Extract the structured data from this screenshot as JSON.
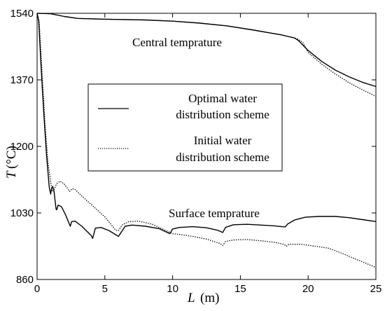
{
  "chart_data": {
    "type": "line",
    "xlabel": "L",
    "xunit": "(m)",
    "ylabel": "T",
    "yunit": "(°C)",
    "xlim": [
      0,
      25
    ],
    "ylim": [
      860,
      1540
    ],
    "xticks": [
      "0",
      "5",
      "10",
      "15",
      "20",
      "25"
    ],
    "yticks": [
      "860",
      "1030",
      "1200",
      "1370",
      "1540"
    ],
    "grid": false,
    "legend_position": "center-left",
    "annotations": {
      "central": "Central temprature",
      "surface": "Surface temprature"
    },
    "series": [
      {
        "name": "Optimal water distribution scheme",
        "legend_line1": "Optimal water",
        "legend_line2": "distribution scheme",
        "style": "solid",
        "color": "#000000",
        "curves": [
          [
            [
              0,
              1540
            ],
            [
              1,
              1539
            ],
            [
              2,
              1532
            ],
            [
              3,
              1527
            ],
            [
              5,
              1525
            ],
            [
              8,
              1523
            ],
            [
              10,
              1520
            ],
            [
              12,
              1515
            ],
            [
              14,
              1508
            ],
            [
              16,
              1497
            ],
            [
              17,
              1491
            ],
            [
              18,
              1485
            ],
            [
              18.5,
              1481
            ],
            [
              19,
              1477
            ],
            [
              19.3,
              1470
            ],
            [
              20,
              1445
            ],
            [
              21,
              1417
            ],
            [
              22,
              1395
            ],
            [
              23,
              1378
            ],
            [
              24,
              1364
            ],
            [
              25,
              1353
            ]
          ],
          [
            [
              0,
              1540
            ],
            [
              0.12,
              1520
            ],
            [
              0.3,
              1400
            ],
            [
              0.5,
              1280
            ],
            [
              0.7,
              1175
            ],
            [
              0.9,
              1095
            ],
            [
              1.0,
              1078
            ],
            [
              1.05,
              1090
            ],
            [
              1.15,
              1098
            ],
            [
              1.25,
              1085
            ],
            [
              1.4,
              1040
            ],
            [
              1.45,
              1038
            ],
            [
              1.55,
              1050
            ],
            [
              1.8,
              1046
            ],
            [
              2.1,
              1025
            ],
            [
              2.45,
              996
            ],
            [
              2.55,
              1008
            ],
            [
              2.8,
              1009
            ],
            [
              3.3,
              996
            ],
            [
              4.0,
              972
            ],
            [
              4.1,
              965
            ],
            [
              4.3,
              991
            ],
            [
              4.7,
              993
            ],
            [
              5.3,
              985
            ],
            [
              6.0,
              970
            ],
            [
              6.1,
              975
            ],
            [
              6.5,
              996
            ],
            [
              7,
              999
            ],
            [
              8,
              996
            ],
            [
              9,
              990
            ],
            [
              9.8,
              977
            ],
            [
              10.0,
              989
            ],
            [
              10.5,
              993
            ],
            [
              11.5,
              995
            ],
            [
              12.5,
              992
            ],
            [
              13.3,
              986
            ],
            [
              13.7,
              980
            ],
            [
              13.9,
              993
            ],
            [
              14.5,
              1000
            ],
            [
              15.5,
              1001
            ],
            [
              16.5,
              999
            ],
            [
              17.5,
              997
            ],
            [
              18.3,
              994
            ],
            [
              18.5,
              1002
            ],
            [
              19.0,
              1012
            ],
            [
              19.8,
              1019
            ],
            [
              20.8,
              1021
            ],
            [
              22,
              1021
            ],
            [
              23,
              1018
            ],
            [
              24,
              1013
            ],
            [
              25,
              1008
            ]
          ]
        ]
      },
      {
        "name": "Initial water distribution scheme",
        "legend_line1": "Initial water",
        "legend_line2": "distribution scheme",
        "style": "dotted",
        "color": "#000000",
        "curves": [
          [
            [
              0,
              1540
            ],
            [
              1,
              1539
            ],
            [
              2,
              1532
            ],
            [
              3,
              1527
            ],
            [
              5,
              1525
            ],
            [
              8,
              1523
            ],
            [
              10,
              1520
            ],
            [
              12,
              1515
            ],
            [
              14,
              1508
            ],
            [
              16,
              1497
            ],
            [
              17,
              1491
            ],
            [
              18,
              1485
            ],
            [
              18.5,
              1481
            ],
            [
              19,
              1477
            ],
            [
              19.3,
              1473
            ],
            [
              19.6,
              1466
            ],
            [
              20,
              1440
            ],
            [
              21,
              1410
            ],
            [
              22,
              1385
            ],
            [
              23,
              1363
            ],
            [
              24,
              1345
            ],
            [
              25,
              1328
            ]
          ],
          [
            [
              0,
              1540
            ],
            [
              0.15,
              1520
            ],
            [
              0.4,
              1370
            ],
            [
              0.6,
              1250
            ],
            [
              0.8,
              1160
            ],
            [
              1.0,
              1110
            ],
            [
              1.1,
              1085
            ],
            [
              1.25,
              1090
            ],
            [
              1.45,
              1105
            ],
            [
              1.7,
              1111
            ],
            [
              2.0,
              1104
            ],
            [
              2.4,
              1085
            ],
            [
              2.6,
              1092
            ],
            [
              2.8,
              1090
            ],
            [
              3.4,
              1070
            ],
            [
              4.2,
              1045
            ],
            [
              5.0,
              1020
            ],
            [
              5.8,
              986
            ],
            [
              6.0,
              985
            ],
            [
              6.3,
              1000
            ],
            [
              6.8,
              1008
            ],
            [
              7.5,
              1009
            ],
            [
              8.5,
              1001
            ],
            [
              9.5,
              985
            ],
            [
              10.0,
              977
            ],
            [
              10.5,
              975
            ],
            [
              11.5,
              970
            ],
            [
              12.5,
              963
            ],
            [
              13.5,
              952
            ],
            [
              13.7,
              947
            ],
            [
              13.9,
              957
            ],
            [
              14.5,
              961
            ],
            [
              15.5,
              962
            ],
            [
              16.5,
              959
            ],
            [
              17.5,
              955
            ],
            [
              18.2,
              950
            ],
            [
              18.4,
              945
            ],
            [
              18.6,
              950
            ],
            [
              19.5,
              950
            ],
            [
              20.5,
              945
            ],
            [
              21.5,
              940
            ],
            [
              22.5,
              927
            ],
            [
              23.5,
              912
            ],
            [
              24.5,
              898
            ],
            [
              25,
              891
            ]
          ]
        ]
      }
    ]
  }
}
